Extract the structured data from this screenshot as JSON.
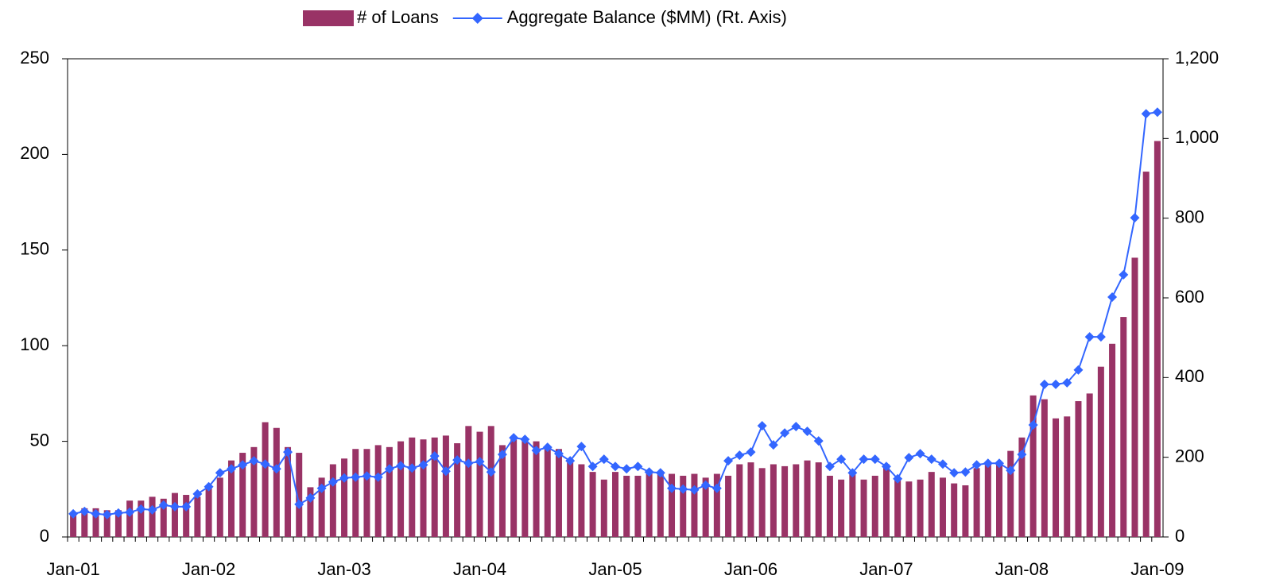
{
  "chart_data": {
    "type": "bar-line",
    "categories": [
      "Jan-01",
      null,
      null,
      null,
      null,
      null,
      null,
      null,
      null,
      null,
      null,
      null,
      "Jan-02",
      null,
      null,
      null,
      null,
      null,
      null,
      null,
      null,
      null,
      null,
      null,
      "Jan-03",
      null,
      null,
      null,
      null,
      null,
      null,
      null,
      null,
      null,
      null,
      null,
      "Jan-04",
      null,
      null,
      null,
      null,
      null,
      null,
      null,
      null,
      null,
      null,
      null,
      "Jan-05",
      null,
      null,
      null,
      null,
      null,
      null,
      null,
      null,
      null,
      null,
      null,
      "Jan-06",
      null,
      null,
      null,
      null,
      null,
      null,
      null,
      null,
      null,
      null,
      null,
      "Jan-07",
      null,
      null,
      null,
      null,
      null,
      null,
      null,
      null,
      null,
      null,
      null,
      "Jan-08",
      null,
      null,
      null,
      null,
      null,
      null,
      null,
      null,
      null,
      null,
      null,
      "Jan-09"
    ],
    "series": [
      {
        "name": "# of Loans",
        "type": "bar",
        "color": "#993366",
        "values": [
          13,
          15,
          15,
          14,
          14,
          19,
          19,
          21,
          20,
          23,
          22,
          21,
          26,
          31,
          40,
          44,
          47,
          60,
          57,
          47,
          44,
          26,
          31,
          38,
          41,
          46,
          46,
          48,
          47,
          50,
          52,
          51,
          52,
          53,
          49,
          58,
          55,
          58,
          48,
          51,
          51,
          50,
          47,
          46,
          39,
          38,
          34,
          30,
          34,
          32,
          32,
          34,
          33,
          33,
          32,
          33,
          31,
          33,
          32,
          38,
          39,
          36,
          38,
          37,
          38,
          40,
          39,
          32,
          30,
          33,
          30,
          32,
          38,
          31,
          29,
          30,
          34,
          31,
          28,
          27,
          36,
          38,
          38,
          45,
          52,
          74,
          72,
          62,
          63,
          71,
          75,
          89,
          101,
          115,
          146,
          191,
          207
        ]
      },
      {
        "name": "Aggregate Balance ($MM) (Rt. Axis)",
        "type": "line",
        "axis": "y2",
        "color": "#3366FF",
        "values": [
          58,
          64,
          58,
          56,
          60,
          62,
          70,
          68,
          80,
          76,
          76,
          108,
          126,
          161,
          171,
          181,
          191,
          183,
          171,
          213,
          82,
          98,
          122,
          138,
          148,
          150,
          153,
          150,
          171,
          179,
          173,
          181,
          203,
          165,
          193,
          185,
          189,
          163,
          207,
          249,
          245,
          217,
          225,
          209,
          191,
          227,
          177,
          195,
          177,
          171,
          177,
          163,
          161,
          122,
          120,
          118,
          130,
          122,
          191,
          205,
          213,
          279,
          231,
          261,
          277,
          265,
          241,
          177,
          195,
          161,
          195,
          195,
          177,
          146,
          199,
          209,
          195,
          183,
          161,
          163,
          181,
          185,
          185,
          167,
          207,
          281,
          383,
          383,
          387,
          419,
          502,
          502,
          602,
          658,
          801,
          1062,
          1066
        ]
      }
    ],
    "ylim": [
      0,
      250
    ],
    "yticks": [
      0,
      50,
      100,
      150,
      200,
      250
    ],
    "y2lim": [
      0,
      1200
    ],
    "y2ticks": [
      0,
      200,
      400,
      600,
      800,
      {
        "value": 1000,
        "label": "1,000"
      },
      {
        "value": 1200,
        "label": "1,200"
      }
    ],
    "legend": "top"
  }
}
